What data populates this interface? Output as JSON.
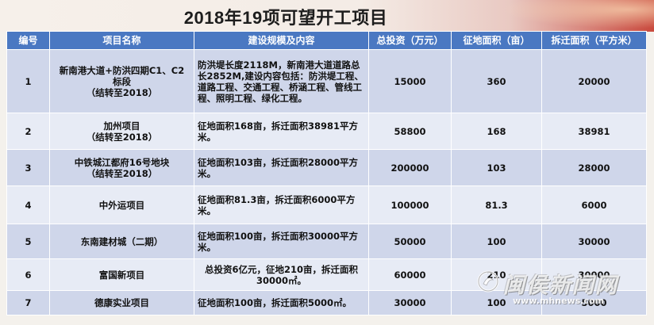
{
  "title": "2018年19项可望开工项目",
  "table": {
    "headers": [
      "编号",
      "项目名称",
      "建设规模及内容",
      "总投资（万元）",
      "征地面积（亩）",
      "拆迁面积（平方米）"
    ],
    "rows": [
      {
        "no": "1",
        "name": "新南港大道+防洪四期C1、C2\n标段\n（结转至2018）",
        "scope": "防洪堤长度2118M，新南港大道道路总长2852M,建设内容包括：防洪堤工程、道路工程、交通工程、桥涵工程、管线工程、照明工程、绿化工程。",
        "investment": "15000",
        "land": "360",
        "demolition": "20000"
      },
      {
        "no": "2",
        "name": "加州项目\n（结转至2018）",
        "scope": "征地面积168亩，拆迁面积38981平方米。",
        "investment": "58800",
        "land": "168",
        "demolition": "38981"
      },
      {
        "no": "3",
        "name": "中铁城江都府16号地块\n（结转至2018）",
        "scope": "征地面积103亩，拆迁面积28000平方米。",
        "investment": "200000",
        "land": "103",
        "demolition": "28000"
      },
      {
        "no": "4",
        "name": "中外运项目",
        "scope": "征地面积81.3亩，拆迁面积6000平方米。",
        "investment": "100000",
        "land": "81.3",
        "demolition": "6000"
      },
      {
        "no": "5",
        "name": "东南建材城（二期）",
        "scope": "征地面积100亩，拆迁面积30000平方米。",
        "investment": "50000",
        "land": "100",
        "demolition": "30000"
      },
      {
        "no": "6",
        "name": "富国新项目",
        "scope": "总投资6亿元，征地210亩，拆迁面积30000㎡。",
        "investment": "60000",
        "land": "210",
        "demolition": "30000"
      },
      {
        "no": "7",
        "name": "德康实业项目",
        "scope": "征地面积100亩，拆迁面积5000㎡。",
        "investment": "30000",
        "land": "100",
        "demolition": "5000"
      }
    ]
  },
  "watermark": {
    "text": "闽侯新闻网",
    "url": "www.mhnews.com"
  },
  "colors": {
    "header_bg": "#4a78c2",
    "row_odd": "#cfd6ea",
    "row_even": "#e7ebf5",
    "accent_red": "#c94a3e"
  }
}
